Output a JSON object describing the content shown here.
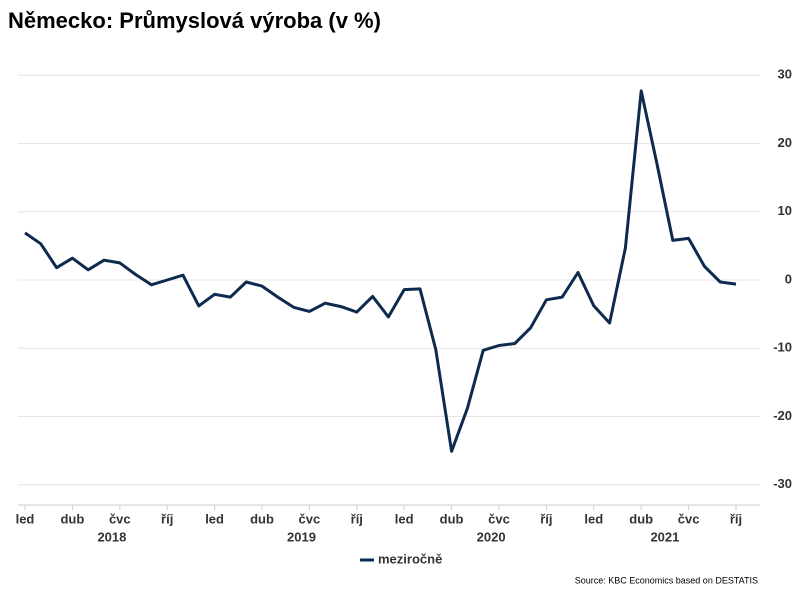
{
  "chart_data": {
    "type": "line",
    "title": "Německo: Průmyslová výroba (v %)",
    "categories": [
      "led",
      null,
      null,
      "dub",
      null,
      null,
      "čvc",
      null,
      null,
      "říj",
      null,
      null,
      "led",
      null,
      null,
      "dub",
      null,
      null,
      "čvc",
      null,
      null,
      "říj",
      null,
      null,
      "led",
      null,
      null,
      "dub",
      null,
      null,
      "čvc",
      null,
      null,
      "říj",
      null,
      null,
      "led",
      null,
      null,
      "dub",
      null,
      null,
      "čvc",
      null,
      null,
      "říj"
    ],
    "year_labels": [
      "2018",
      "2019",
      "2020",
      "2021"
    ],
    "series": [
      {
        "name": "meziročně",
        "color": "#0e2a4f",
        "values": [
          6.9,
          5.3,
          1.8,
          3.2,
          1.5,
          2.9,
          2.5,
          0.8,
          -0.7,
          0.0,
          0.7,
          -3.8,
          -2.1,
          -2.5,
          -0.3,
          -0.9,
          -2.5,
          -4.0,
          -4.6,
          -3.4,
          -3.9,
          -4.7,
          -2.4,
          -5.4,
          -1.4,
          -1.3,
          -10.2,
          -25.1,
          -18.8,
          -10.3,
          -9.6,
          -9.3,
          -7.0,
          -2.9,
          -2.5,
          1.1,
          -3.8,
          -6.3,
          4.7,
          27.7,
          17.0,
          5.8,
          6.1,
          2.0,
          -0.3,
          -0.6
        ]
      }
    ],
    "ylim": [
      -31.5,
      31.5
    ],
    "yticks": [
      30,
      20,
      10,
      0,
      -10,
      -20,
      -30
    ],
    "grid": true,
    "legend": "bottom",
    "source": "Source: KBC Economics based on DESTATIS"
  }
}
